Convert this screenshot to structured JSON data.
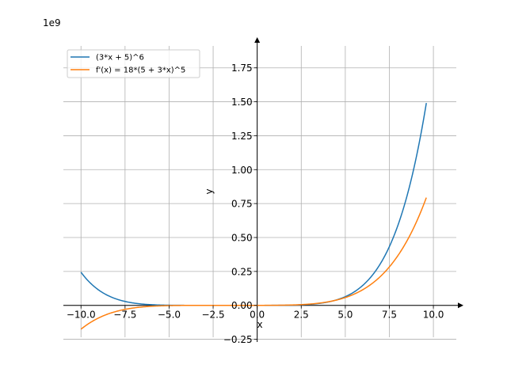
{
  "chart_data": {
    "type": "line",
    "title": "",
    "xlabel": "x",
    "ylabel": "y",
    "scale_label": "1e9",
    "xlim": [
      -11.0,
      11.3
    ],
    "ylim": [
      -0.27,
      1.97
    ],
    "x_ticks": [
      -10.0,
      -7.5,
      -5.0,
      -2.5,
      0.0,
      2.5,
      5.0,
      7.5,
      10.0
    ],
    "x_tick_labels": [
      "−10.0",
      "−7.5",
      "−5.0",
      "−2.5",
      "0.0",
      "2.5",
      "5.0",
      "7.5",
      "10.0"
    ],
    "y_ticks": [
      -0.25,
      0.0,
      0.25,
      0.5,
      0.75,
      1.0,
      1.25,
      1.5,
      1.75
    ],
    "y_tick_labels": [
      "−0.25",
      "0.00",
      "0.25",
      "0.50",
      "0.75",
      "1.00",
      "1.25",
      "1.50",
      "1.75"
    ],
    "grid": true,
    "legend_position": "top-left",
    "x_domain": [
      -10.0,
      9.6
    ],
    "series": [
      {
        "name": "(3*x + 5)^6",
        "color": "#1f77b4"
      },
      {
        "name": "f'(x) = 18*(5 + 3*x)^5",
        "color": "#ff7f0e"
      }
    ]
  }
}
